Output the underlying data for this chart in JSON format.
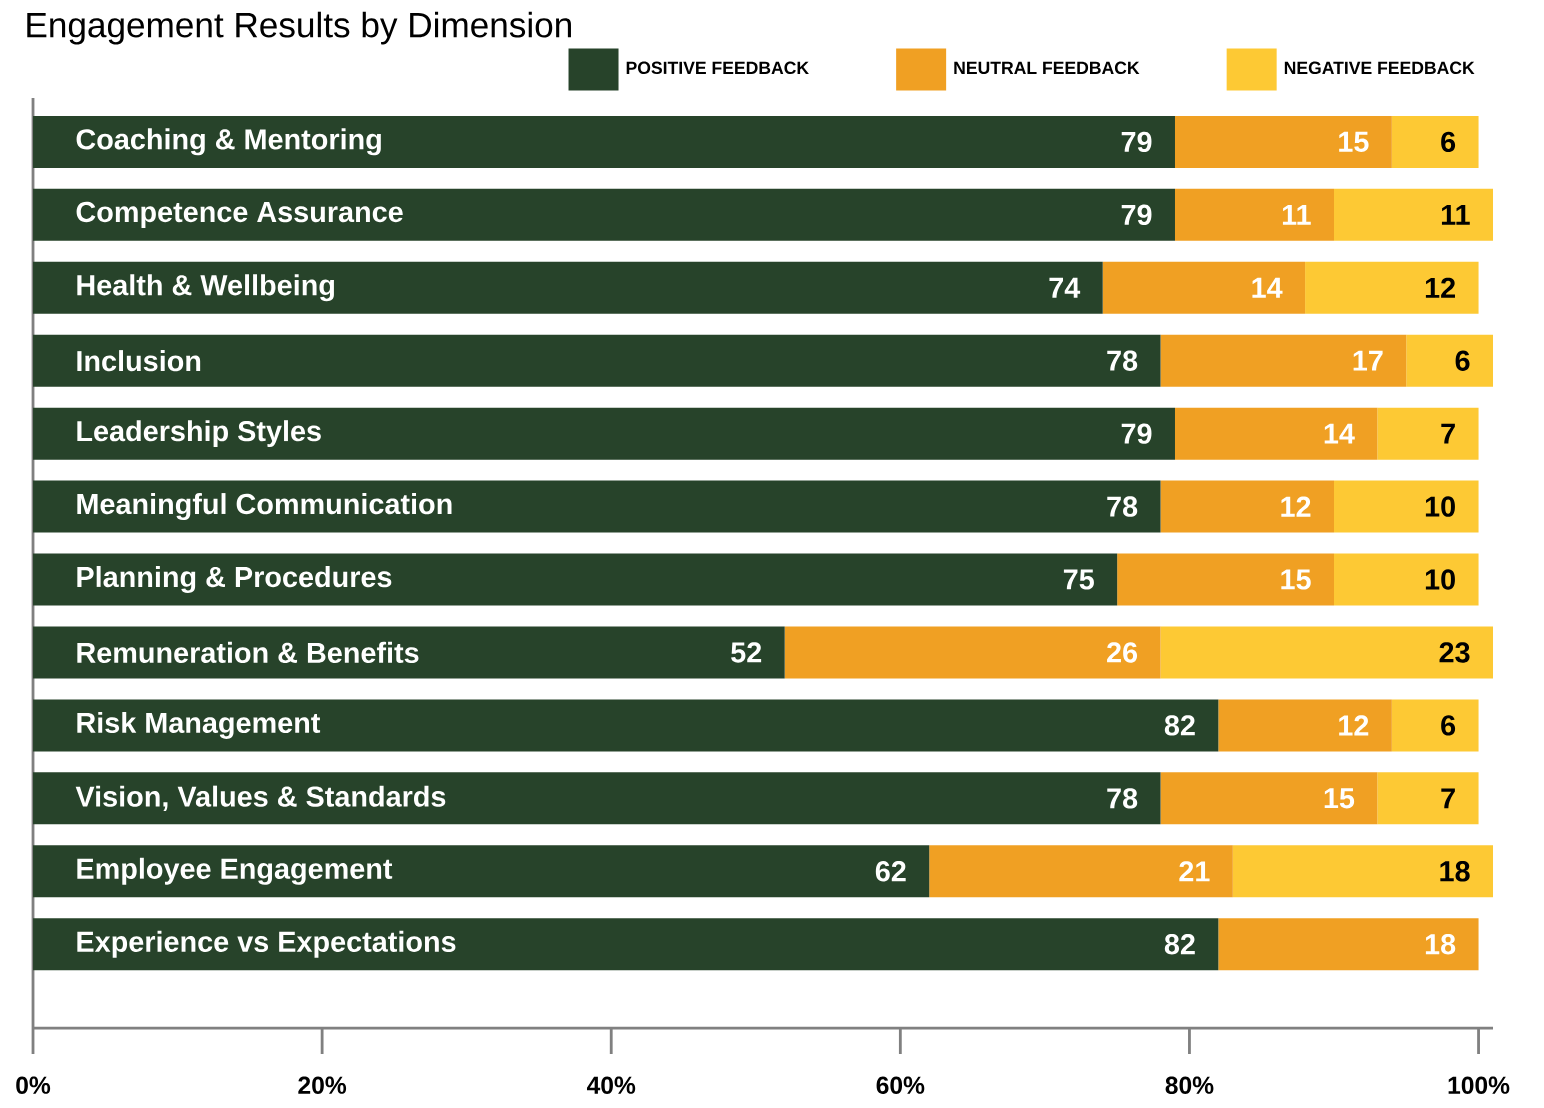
{
  "chart_data": {
    "type": "bar",
    "orientation": "horizontal",
    "stacked": true,
    "title": "Engagement Results by Dimension",
    "categories": [
      "Coaching & Mentoring",
      "Competence Assurance",
      "Health & Wellbeing",
      "Inclusion",
      "Leadership Styles",
      "Meaningful Communication",
      "Planning & Procedures",
      "Remuneration & Benefits",
      "Risk Management",
      "Vision, Values & Standards",
      "Employee Engagement",
      "Experience vs Expectations"
    ],
    "series": [
      {
        "name": "POSITIVE FEEDBACK",
        "color": "#27432a",
        "values": [
          79,
          79,
          74,
          78,
          79,
          78,
          75,
          52,
          82,
          78,
          62,
          82
        ]
      },
      {
        "name": "NEUTRAL FEEDBACK",
        "color": "#f0a023",
        "values": [
          15,
          11,
          14,
          17,
          14,
          12,
          15,
          26,
          12,
          15,
          21,
          18
        ]
      },
      {
        "name": "NEGATIVE FEEDBACK",
        "color": "#fdc934",
        "values": [
          6,
          11,
          12,
          6,
          7,
          10,
          10,
          23,
          6,
          7,
          18,
          null
        ]
      }
    ],
    "xlim": [
      0,
      101
    ],
    "xticks": [
      {
        "value": 0,
        "label": "0%"
      },
      {
        "value": 20,
        "label": "20%"
      },
      {
        "value": 40,
        "label": "40%"
      },
      {
        "value": 60,
        "label": "60%"
      },
      {
        "value": 80,
        "label": "80%"
      },
      {
        "value": 100,
        "label": "100%"
      }
    ],
    "data_labels": true,
    "legend": "top right",
    "grid": false
  }
}
